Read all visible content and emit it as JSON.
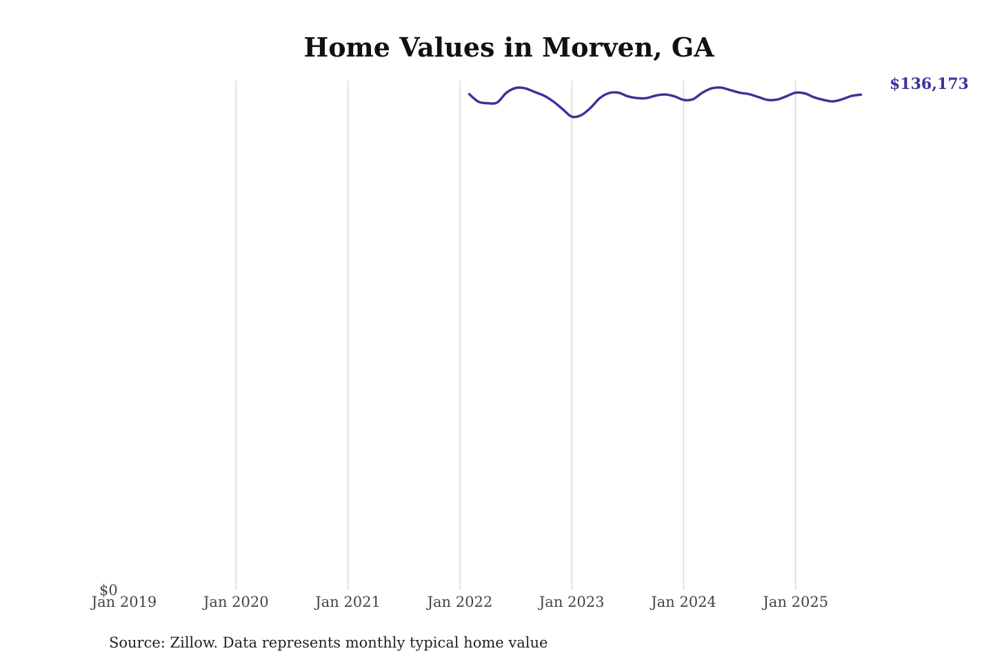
{
  "chart_data": {
    "type": "line",
    "title": "Home Values in Morven, GA",
    "source": "Source: Zillow. Data represents monthly typical home value",
    "xlabel": "",
    "ylabel": "",
    "x_ticks": [
      {
        "label": "Jan 2019",
        "date": "2019-01"
      },
      {
        "label": "Jan 2020",
        "date": "2020-01"
      },
      {
        "label": "Jan 2021",
        "date": "2021-01"
      },
      {
        "label": "Jan 2022",
        "date": "2022-01"
      },
      {
        "label": "Jan 2023",
        "date": "2023-01"
      },
      {
        "label": "Jan 2024",
        "date": "2024-01"
      },
      {
        "label": "Jan 2025",
        "date": "2025-01"
      }
    ],
    "y_ticks": [
      {
        "label": "$0",
        "value": 0
      }
    ],
    "xlim": [
      "2019-01",
      "2025-09"
    ],
    "ylim": [
      0,
      140000
    ],
    "grid": "vertical",
    "line_color": "#3a3399",
    "end_label": "$136,173",
    "series": [
      {
        "x": [
          "2022-02",
          "2022-03",
          "2022-04",
          "2022-05",
          "2022-06",
          "2022-07",
          "2022-08",
          "2022-09",
          "2022-10",
          "2022-11",
          "2022-12",
          "2023-01",
          "2023-02",
          "2023-03",
          "2023-04",
          "2023-05",
          "2023-06",
          "2023-07",
          "2023-08",
          "2023-09",
          "2023-10",
          "2023-11",
          "2023-12",
          "2024-01",
          "2024-02",
          "2024-03",
          "2024-04",
          "2024-05",
          "2024-06",
          "2024-07",
          "2024-08",
          "2024-09",
          "2024-10",
          "2024-11",
          "2024-12",
          "2025-01",
          "2025-02",
          "2025-03",
          "2025-04",
          "2025-05",
          "2025-06",
          "2025-07",
          "2025-08"
        ],
        "values": [
          136300,
          134200,
          133800,
          134000,
          136700,
          138000,
          137900,
          136900,
          135900,
          134300,
          132200,
          130100,
          130500,
          132500,
          135200,
          136600,
          136700,
          135700,
          135200,
          135200,
          135900,
          136200,
          135700,
          134700,
          134900,
          136700,
          137900,
          138100,
          137400,
          136700,
          136300,
          135500,
          134700,
          134800,
          135700,
          136700,
          136500,
          135400,
          134700,
          134300,
          134900,
          135800,
          136173
        ]
      }
    ]
  }
}
